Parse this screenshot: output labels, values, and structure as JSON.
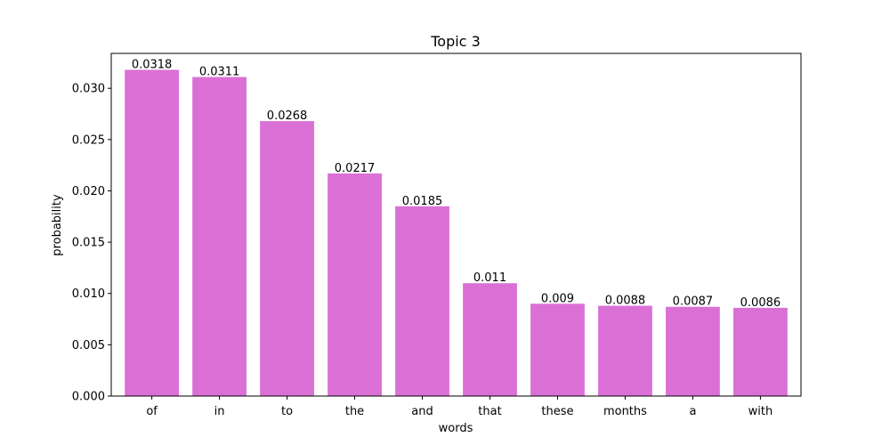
{
  "chart_data": {
    "type": "bar",
    "title": "Topic 3",
    "xlabel": "words",
    "ylabel": "probability",
    "categories": [
      "of",
      "in",
      "to",
      "the",
      "and",
      "that",
      "these",
      "months",
      "a",
      "with"
    ],
    "values": [
      0.0318,
      0.0311,
      0.0268,
      0.0217,
      0.0185,
      0.011,
      0.009,
      0.0088,
      0.0087,
      0.0086
    ],
    "data_labels": [
      "0.0318",
      "0.0311",
      "0.0268",
      "0.0217",
      "0.0185",
      "0.011",
      "0.009",
      "0.0088",
      "0.0087",
      "0.0086"
    ],
    "ylim": [
      0,
      0.0334
    ],
    "yticks": [
      0.0,
      0.005,
      0.01,
      0.015,
      0.02,
      0.025,
      0.03
    ],
    "ytick_labels": [
      "0.000",
      "0.005",
      "0.010",
      "0.015",
      "0.020",
      "0.025",
      "0.030"
    ],
    "bar_color": "#da70d6",
    "grid": false,
    "legend": "none"
  }
}
